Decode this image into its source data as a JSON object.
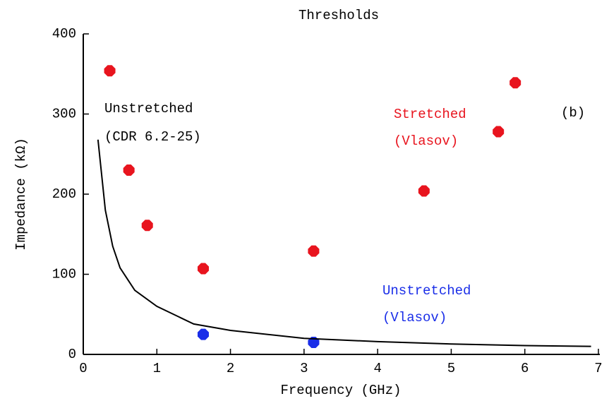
{
  "chart_data": {
    "type": "scatter",
    "title": "Thresholds",
    "x_label": "Frequency (GHz)",
    "y_label": "Impedance (kΩ)",
    "xlim": [
      0,
      7
    ],
    "ylim": [
      0,
      400
    ],
    "xticks": [
      0,
      1,
      2,
      3,
      4,
      5,
      6,
      7
    ],
    "yticks": [
      0,
      100,
      200,
      300,
      400
    ],
    "series": [
      {
        "kind": "points",
        "color": "#e8141e",
        "x": [
          0.36,
          0.62,
          0.87,
          1.63,
          3.13,
          4.63,
          5.64,
          5.87
        ],
        "values": [
          354,
          230,
          161,
          107,
          129,
          204,
          278,
          339
        ]
      },
      {
        "kind": "points",
        "color": "#1a2ee8",
        "x": [
          1.63,
          3.13
        ],
        "values": [
          25,
          15
        ]
      },
      {
        "kind": "line",
        "color": "#000000",
        "x": [
          0.2,
          0.3,
          0.4,
          0.5,
          0.7,
          1,
          1.5,
          2,
          3,
          4,
          5,
          6,
          6.9
        ],
        "values": [
          268,
          180,
          135,
          108,
          80,
          60,
          38,
          30,
          20,
          16,
          13,
          11,
          10
        ]
      }
    ],
    "annotations": [
      {
        "text": "Unstretched",
        "color": "#000000"
      },
      {
        "text": "(CDR 6.2-25)",
        "color": "#000000"
      },
      {
        "text": "Stretched",
        "color": "#e8141e"
      },
      {
        "text": "(Vlasov)",
        "color": "#e8141e"
      },
      {
        "text": "(b)",
        "color": "#000000"
      },
      {
        "text": "Unstretched",
        "color": "#1a2ee8"
      },
      {
        "text": "(Vlasov)",
        "color": "#1a2ee8"
      }
    ]
  }
}
